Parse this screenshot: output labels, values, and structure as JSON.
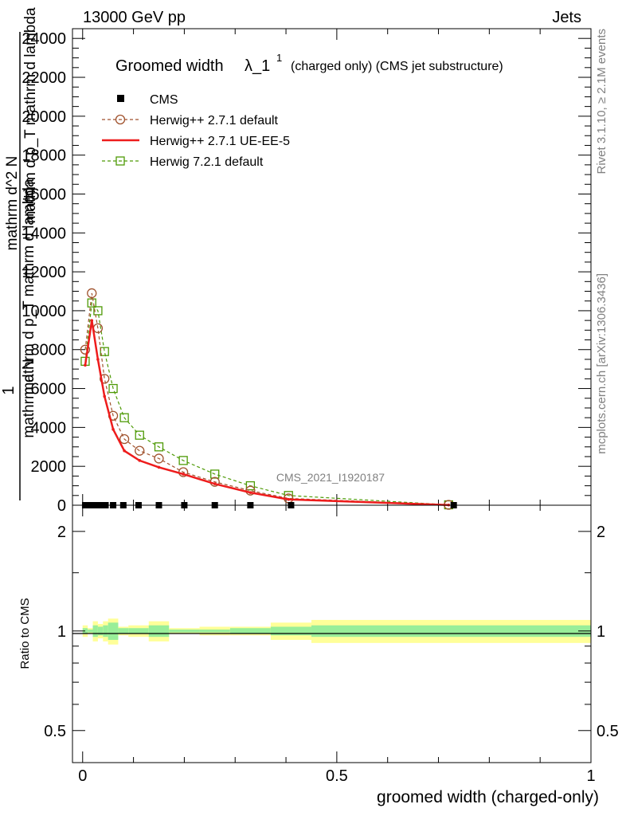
{
  "header": {
    "left": "13000 GeV pp",
    "right": "Jets"
  },
  "side": {
    "rivet": "Rivet 3.1.10, ≥ 2.1M events",
    "mcplots": "mcplots.cern.ch [arXiv:1306.3436]"
  },
  "main_ylabel": {
    "one": "1",
    "numerator": "mathrm d N",
    "denominator": "mathrm d p_T mathrm d lambda",
    "top_numerator": "mathrm d^2 N",
    "top_denominator": "mathrm d p_T mathrm d lambda"
  },
  "title": {
    "main": "Groomed width",
    "lambda": "λ_1",
    "sup": "1",
    "rest": "(charged only) (CMS jet substructure)"
  },
  "watermark": "CMS_2021_I1920187",
  "ratio_ylabel": "Ratio to CMS",
  "xlabel": "groomed width (charged-only)",
  "colors": {
    "cms": "#000000",
    "herwig271_default": "#a0522d",
    "herwig271_ueee5": "#ee1c1c",
    "herwig721_default": "#4e9a06",
    "band_yellow": "#ffff99",
    "band_green": "#99ee99"
  },
  "chart_data": [
    {
      "type": "line",
      "panel": "main",
      "xlim": [
        -0.02,
        1.0
      ],
      "ylim": [
        0,
        24500
      ],
      "yticks": [
        0,
        2000,
        4000,
        6000,
        8000,
        10000,
        12000,
        14000,
        16000,
        18000,
        20000,
        22000,
        24000
      ],
      "ytick_labels": [
        "0",
        "2000",
        "4000",
        "6000",
        "8000",
        "10000",
        "12000",
        "14000",
        "16000",
        "18000",
        "20000",
        "22000",
        "24000"
      ],
      "legend_position": "top-left",
      "series": [
        {
          "name": "CMS",
          "marker": "square",
          "x": [
            0.005,
            0.015,
            0.025,
            0.035,
            0.045,
            0.06,
            0.08,
            0.11,
            0.15,
            0.2,
            0.26,
            0.33,
            0.41,
            0.73
          ],
          "y": [
            0,
            0,
            0,
            0,
            0,
            0,
            0,
            0,
            0,
            0,
            0,
            0,
            0,
            0
          ]
        },
        {
          "name": "Herwig++ 2.7.1 default",
          "marker": "circle",
          "x": [
            0.005,
            0.018,
            0.03,
            0.043,
            0.06,
            0.082,
            0.112,
            0.15,
            0.198,
            0.26,
            0.33,
            0.405,
            0.72
          ],
          "y": [
            8000,
            10900,
            9100,
            6500,
            4600,
            3400,
            2800,
            2400,
            1700,
            1200,
            750,
            350,
            20
          ]
        },
        {
          "name": "Herwig++ 2.7.1 UE-EE-5",
          "marker": "line",
          "x": [
            0.005,
            0.018,
            0.03,
            0.043,
            0.06,
            0.082,
            0.112,
            0.15,
            0.198,
            0.26,
            0.33,
            0.405,
            0.72
          ],
          "y": [
            7200,
            9500,
            7500,
            5600,
            3900,
            2800,
            2300,
            1950,
            1600,
            1100,
            650,
            300,
            10
          ]
        },
        {
          "name": "Herwig 7.2.1 default",
          "marker": "open-square",
          "x": [
            0.005,
            0.018,
            0.03,
            0.043,
            0.06,
            0.082,
            0.112,
            0.15,
            0.198,
            0.26,
            0.33,
            0.405,
            0.72
          ],
          "y": [
            7400,
            10400,
            10000,
            7900,
            6000,
            4500,
            3600,
            3000,
            2300,
            1600,
            1000,
            500,
            20
          ]
        }
      ]
    },
    {
      "type": "area",
      "panel": "ratio",
      "xlim": [
        -0.02,
        1.0
      ],
      "ylim": [
        0.4,
        2.4
      ],
      "log_y": true,
      "yticks": [
        0.5,
        1,
        2
      ],
      "ytick_labels": [
        "0.5",
        "1",
        "2"
      ],
      "xticks": [
        0,
        0.5,
        1
      ],
      "xtick_labels": [
        "0",
        "0.5",
        "1"
      ],
      "bins": [
        0,
        0.01,
        0.02,
        0.03,
        0.04,
        0.05,
        0.07,
        0.09,
        0.13,
        0.17,
        0.23,
        0.29,
        0.37,
        0.45,
        1.0
      ],
      "band_yellow_halfwidth": [
        0.04,
        0.02,
        0.07,
        0.05,
        0.07,
        0.09,
        0.03,
        0.04,
        0.07,
        0.02,
        0.03,
        0.03,
        0.06,
        0.08
      ],
      "band_green_halfwidth": [
        0.02,
        0.01,
        0.04,
        0.03,
        0.04,
        0.06,
        0.02,
        0.02,
        0.04,
        0.01,
        0.01,
        0.02,
        0.03,
        0.04
      ]
    }
  ]
}
